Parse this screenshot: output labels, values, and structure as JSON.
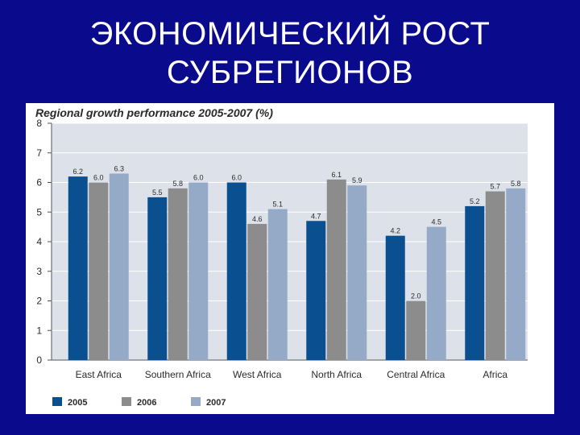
{
  "slide": {
    "title_line1": "ЭКОНОМИЧЕСКИЙ РОСТ",
    "title_line2": "СУБРЕГИОНОВ"
  },
  "chart_data": {
    "type": "bar",
    "title": "Regional growth performance 2005-2007 (%)",
    "categories": [
      "East Africa",
      "Southern Africa",
      "West Africa",
      "North Africa",
      "Central Africa",
      "Africa"
    ],
    "series": [
      {
        "name": "2005",
        "color": "#0a4f8f",
        "values": [
          6.2,
          5.5,
          6.0,
          4.7,
          4.2,
          5.2
        ]
      },
      {
        "name": "2006",
        "color": "#8c8c8c",
        "values": [
          6.0,
          5.8,
          4.6,
          6.1,
          2.0,
          5.7
        ]
      },
      {
        "name": "2007",
        "color": "#95aac6",
        "values": [
          6.3,
          6.0,
          5.1,
          5.9,
          4.5,
          5.8
        ]
      }
    ],
    "value_labels": [
      [
        "6.2",
        "5.5",
        "6.0",
        "4.7",
        "4.2",
        "5.2"
      ],
      [
        "6.0",
        "5.8",
        "4.6",
        "6.1",
        "2.0",
        "5.7"
      ],
      [
        "6.3",
        "6.0",
        "5.1",
        "5.9",
        "4.5",
        "5.8"
      ]
    ],
    "y_ticks": [
      "0",
      "1",
      "2",
      "3",
      "4",
      "5",
      "6",
      "7",
      "8"
    ],
    "ylim": [
      0,
      8
    ],
    "grid": true,
    "legend_position": "bottom-left",
    "plot_background": "#dde2ea"
  }
}
